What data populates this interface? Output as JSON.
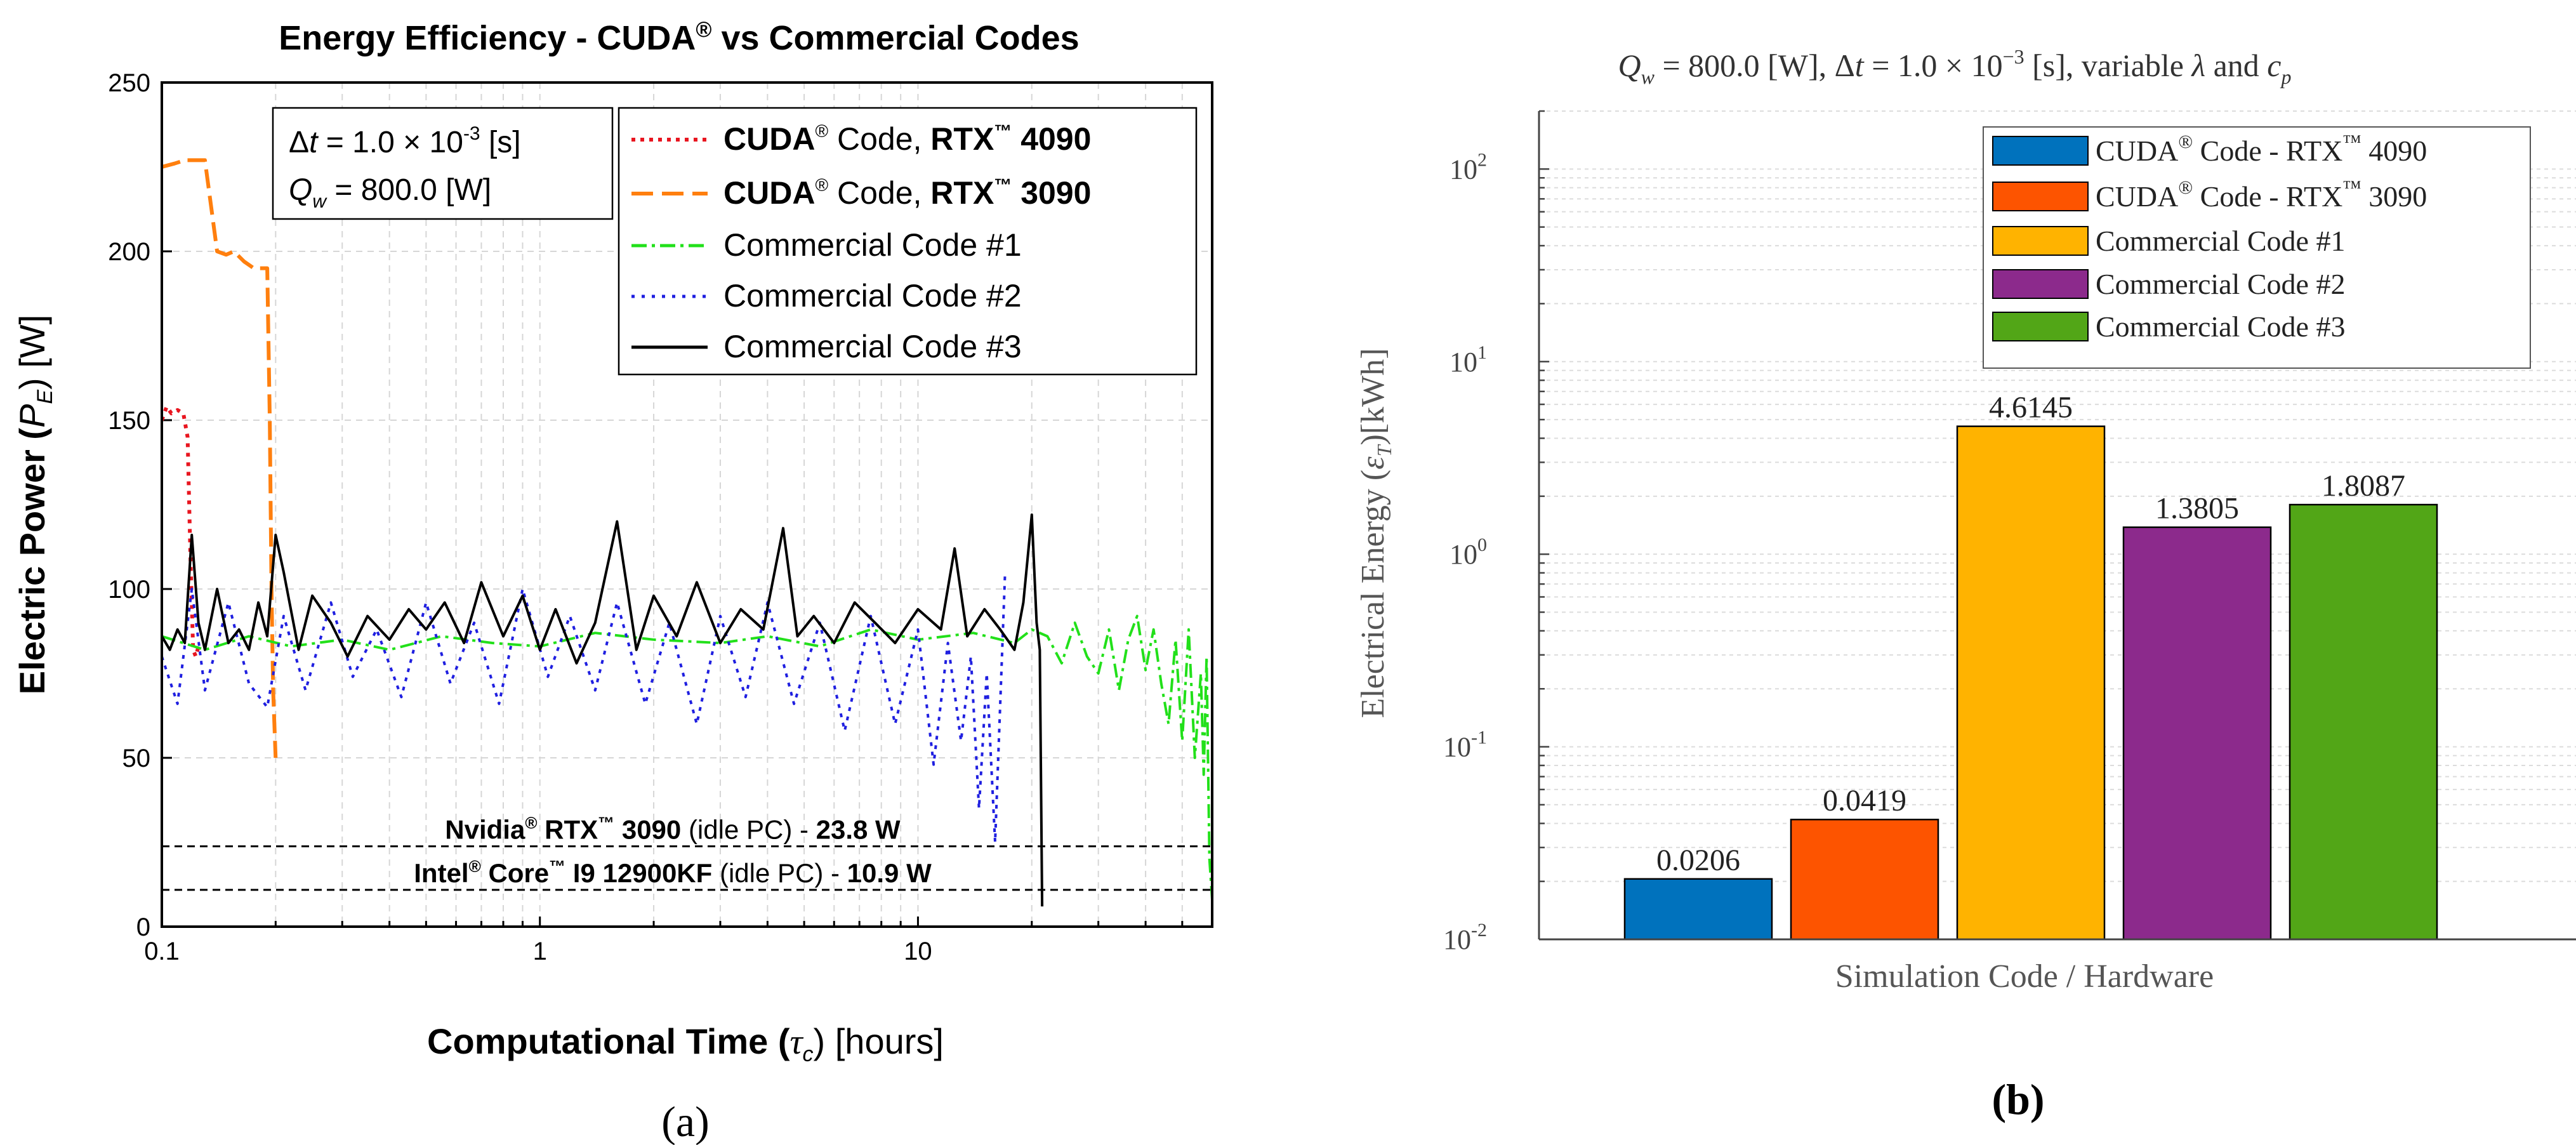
{
  "chart_data": [
    {
      "panel_label": "(a)",
      "type": "line",
      "title_parts": [
        "Energy Efficiency - CUDA",
        "®",
        " vs Commercial Codes"
      ],
      "xlabel_parts": [
        "Computational Time (",
        "τ",
        "c",
        ") [hours]"
      ],
      "ylabel_parts": [
        "Electric Power (",
        "P",
        "E",
        ") [W]"
      ],
      "xscale": "log",
      "xlim": [
        0.1,
        60
      ],
      "ylim": [
        0,
        250
      ],
      "x_ticks": [
        0.1,
        1,
        10
      ],
      "x_tick_labels": [
        "0.1",
        "1",
        "10"
      ],
      "y_ticks": [
        0,
        50,
        100,
        150,
        200,
        250
      ],
      "y_tick_labels": [
        "0",
        "50",
        "100",
        "150",
        "200",
        "250"
      ],
      "grid": true,
      "legend_position": "top-right",
      "annotation_box": {
        "line1": [
          "Δ",
          "t",
          " = 1.0 × 10",
          "-3",
          " [s]"
        ],
        "line2": [
          "Q",
          "w",
          " = 800.0 [W]"
        ]
      },
      "reference_lines": [
        {
          "y": 23.8,
          "label_parts": [
            "Nvidia",
            "®",
            " RTX",
            "™",
            " 3090",
            " (idle PC) - ",
            "23.8 W"
          ]
        },
        {
          "y": 10.9,
          "label_parts": [
            "Intel",
            "®",
            " Core",
            "™",
            " I9 12900KF",
            " (idle PC) - ",
            "10.9 W"
          ]
        }
      ],
      "series": [
        {
          "name": "CUDA® Code, RTX™ 4090",
          "legend_parts": [
            "CUDA",
            "®",
            " Code, ",
            "RTX",
            "™",
            " 4090"
          ],
          "color": "#e8151f",
          "style": "dotted",
          "x": [
            0.1,
            0.103,
            0.106,
            0.11,
            0.114,
            0.117,
            0.119,
            0.121,
            0.123,
            0.125
          ],
          "y": [
            150,
            154,
            152,
            153,
            152,
            145,
            110,
            82,
            80,
            83
          ]
        },
        {
          "name": "CUDA® Code, RTX™ 3090",
          "legend_parts": [
            "CUDA",
            "®",
            " Code, ",
            "RTX",
            "™",
            " 3090"
          ],
          "color": "#ff7f0e",
          "style": "dashed",
          "x": [
            0.1,
            0.108,
            0.115,
            0.122,
            0.13,
            0.14,
            0.148,
            0.155,
            0.165,
            0.175,
            0.185,
            0.19,
            0.193,
            0.195,
            0.197,
            0.2
          ],
          "y": [
            225,
            226,
            227,
            227,
            227,
            200,
            199,
            200,
            197,
            195,
            195,
            195,
            150,
            100,
            70,
            50
          ]
        },
        {
          "name": "Commercial Code #1",
          "legend_parts": [
            "Commercial Code #1"
          ],
          "color": "#22e01a",
          "style": "dashdot",
          "x": [
            0.1,
            0.13,
            0.17,
            0.22,
            0.3,
            0.4,
            0.55,
            0.75,
            1,
            1.4,
            2,
            3,
            4,
            5.5,
            7.5,
            10,
            14,
            18,
            20,
            22,
            24,
            26,
            28,
            30,
            32,
            34,
            36,
            38,
            40,
            42,
            44,
            46,
            48,
            50,
            52,
            54,
            56,
            57,
            58,
            59,
            60
          ],
          "y": [
            86,
            82,
            86,
            83,
            85,
            82,
            86,
            84,
            83,
            87,
            85,
            84,
            86,
            83,
            88,
            85,
            87,
            84,
            88,
            86,
            78,
            90,
            80,
            75,
            88,
            70,
            85,
            92,
            76,
            88,
            72,
            60,
            85,
            55,
            88,
            50,
            75,
            45,
            80,
            20,
            8
          ]
        },
        {
          "name": "Commercial Code #2",
          "legend_parts": [
            "Commercial Code #2"
          ],
          "color": "#1f1fe0",
          "style": "dotted",
          "x": [
            0.1,
            0.11,
            0.12,
            0.13,
            0.15,
            0.17,
            0.19,
            0.21,
            0.24,
            0.28,
            0.32,
            0.37,
            0.43,
            0.5,
            0.58,
            0.67,
            0.78,
            0.9,
            1.05,
            1.2,
            1.4,
            1.6,
            1.9,
            2.2,
            2.6,
            3.0,
            3.5,
            4.0,
            4.7,
            5.5,
            6.4,
            7.5,
            8.7,
            10,
            11,
            12,
            13,
            13.8,
            14.5,
            15.2,
            16,
            17
          ],
          "y": [
            80,
            66,
            100,
            70,
            96,
            72,
            65,
            92,
            70,
            96,
            74,
            88,
            68,
            96,
            72,
            90,
            66,
            100,
            74,
            92,
            70,
            96,
            66,
            90,
            60,
            92,
            68,
            96,
            66,
            90,
            58,
            92,
            60,
            88,
            48,
            84,
            55,
            80,
            35,
            75,
            25,
            105
          ]
        },
        {
          "name": "Commercial Code #3",
          "legend_parts": [
            "Commercial Code #3"
          ],
          "color": "#000000",
          "style": "solid",
          "x": [
            0.1,
            0.105,
            0.11,
            0.115,
            0.12,
            0.125,
            0.13,
            0.14,
            0.15,
            0.16,
            0.17,
            0.18,
            0.19,
            0.2,
            0.21,
            0.23,
            0.25,
            0.28,
            0.31,
            0.35,
            0.4,
            0.45,
            0.5,
            0.56,
            0.63,
            0.7,
            0.8,
            0.9,
            1.0,
            1.1,
            1.25,
            1.4,
            1.6,
            1.8,
            2.0,
            2.3,
            2.6,
            3.0,
            3.4,
            3.9,
            4.4,
            4.8,
            5.3,
            6.0,
            6.8,
            7.7,
            8.7,
            10,
            11.5,
            12.5,
            13.5,
            15,
            16.5,
            18,
            19,
            20,
            20.6,
            21,
            21.3
          ],
          "y": [
            86,
            82,
            88,
            84,
            116,
            90,
            82,
            100,
            84,
            88,
            82,
            96,
            86,
            116,
            105,
            82,
            98,
            90,
            80,
            92,
            85,
            94,
            88,
            96,
            84,
            102,
            86,
            98,
            82,
            94,
            78,
            90,
            120,
            82,
            98,
            86,
            102,
            84,
            94,
            88,
            118,
            86,
            92,
            84,
            96,
            90,
            84,
            94,
            88,
            112,
            86,
            94,
            88,
            82,
            96,
            122,
            90,
            82,
            6
          ]
        }
      ]
    },
    {
      "panel_label": "(b)",
      "type": "bar",
      "title_parts": [
        "Q",
        "w",
        " = 800.0 [W], Δ",
        "t",
        " = 1.0 × 10",
        "−3",
        " [s], variable ",
        "λ",
        " and ",
        "c",
        "p"
      ],
      "xlabel": "Simulation Code / Hardware",
      "ylabel_parts": [
        "Electrical Energy (",
        "ε",
        "T",
        ")[kWh]"
      ],
      "yscale": "log",
      "ylim": [
        0.01,
        200
      ],
      "y_ticks": [
        0.01,
        0.1,
        1,
        10,
        100
      ],
      "y_tick_labels": [
        [
          "10",
          "-2"
        ],
        [
          "10",
          "-1"
        ],
        [
          "10",
          "0"
        ],
        [
          "10",
          "1"
        ],
        [
          "10",
          "2"
        ]
      ],
      "grid": true,
      "legend_position": "top-right",
      "categories": [
        "CUDA® Code - RTX™ 4090",
        "CUDA® Code - RTX™ 3090",
        "Commercial Code #1",
        "Commercial Code #2",
        "Commercial Code #3"
      ],
      "legend_parts": [
        [
          "CUDA",
          "®",
          " Code - RTX",
          "™",
          " 4090"
        ],
        [
          "CUDA",
          "®",
          " Code - RTX",
          "™",
          " 3090"
        ],
        [
          "Commercial Code #1"
        ],
        [
          "Commercial Code #2"
        ],
        [
          "Commercial Code #3"
        ]
      ],
      "values": [
        0.0206,
        0.0419,
        4.6145,
        1.3805,
        1.8087
      ],
      "value_labels": [
        "0.0206",
        "0.0419",
        "4.6145",
        "1.3805",
        "1.8087"
      ],
      "colors": [
        "#0072bd",
        "#fd5400",
        "#ffb300",
        "#8c2a8c",
        "#52a617"
      ]
    }
  ]
}
